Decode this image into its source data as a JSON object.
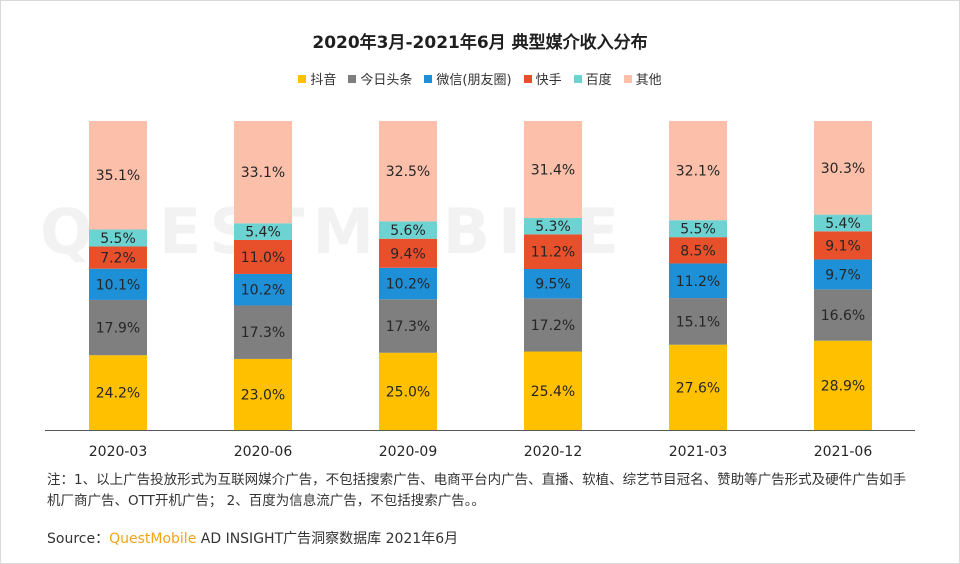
{
  "title": "2020年3月-2021年6月 典型媒介收入分布",
  "watermark": "QUESTMOBILE",
  "legend": [
    {
      "label": "抖音",
      "color": "#ffc000"
    },
    {
      "label": "今日头条",
      "color": "#7f7f7f"
    },
    {
      "label": "微信(朋友圈)",
      "color": "#1e90d8"
    },
    {
      "label": "快手",
      "color": "#e8502c"
    },
    {
      "label": "百度",
      "color": "#6dd3d2"
    },
    {
      "label": "其他",
      "color": "#fbbfaa"
    }
  ],
  "chart_data": {
    "type": "bar",
    "stacked": true,
    "title": "2020年3月-2021年6月 典型媒介收入分布",
    "categories": [
      "2020-03",
      "2020-06",
      "2020-09",
      "2020-12",
      "2021-03",
      "2021-06"
    ],
    "unit": "%",
    "series": [
      {
        "name": "抖音",
        "color": "#ffc000",
        "values": [
          24.2,
          23.0,
          25.0,
          25.4,
          27.6,
          28.9
        ]
      },
      {
        "name": "今日头条",
        "color": "#7f7f7f",
        "values": [
          17.9,
          17.3,
          17.3,
          17.2,
          15.1,
          16.6
        ]
      },
      {
        "name": "微信(朋友圈)",
        "color": "#1e90d8",
        "values": [
          10.1,
          10.2,
          10.2,
          9.5,
          11.2,
          9.7
        ]
      },
      {
        "name": "快手",
        "color": "#e8502c",
        "values": [
          7.2,
          11.0,
          9.4,
          11.2,
          8.5,
          9.1
        ]
      },
      {
        "name": "百度",
        "color": "#6dd3d2",
        "values": [
          5.5,
          5.4,
          5.6,
          5.3,
          5.5,
          5.4
        ]
      },
      {
        "name": "其他",
        "color": "#fbbfaa",
        "values": [
          35.1,
          33.1,
          32.5,
          31.4,
          32.1,
          30.3
        ]
      }
    ],
    "ylim": [
      0,
      100
    ],
    "legend_position": "top-center"
  },
  "note": "注：1、以上广告投放形式为互联网媒介广告，不包括搜索广告、电商平台内广告、直播、软植、综艺节目冠名、赞助等广告形式及硬件广告如手机厂商广告、OTT开机广告； 2、百度为信息流广告，不包括搜索广告。。",
  "source": {
    "prefix": "Source：",
    "brand": "QuestMobile",
    "rest": " AD INSIGHT广告洞察数据库 2021年6月"
  }
}
